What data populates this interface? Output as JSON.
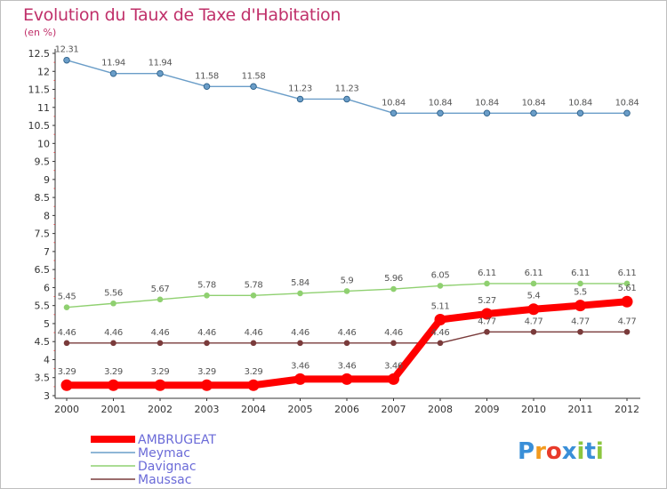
{
  "title": "Evolution du Taux de Taxe d'Habitation",
  "subtitle": "(en %)",
  "logo": "Proxiti",
  "chart_data": {
    "type": "line",
    "x": [
      "2000",
      "2001",
      "2002",
      "2003",
      "2004",
      "2005",
      "2006",
      "2007",
      "2008",
      "2009",
      "2010",
      "2011",
      "2012"
    ],
    "yticks": [
      "3",
      "3.5",
      "4",
      "4.5",
      "5",
      "5.5",
      "6",
      "6.5",
      "7",
      "7.5",
      "8",
      "8.5",
      "9",
      "9.5",
      "10",
      "10.5",
      "11",
      "11.5",
      "12",
      "12.5"
    ],
    "ylim": [
      3,
      12.5
    ],
    "grid": false,
    "legend": "bottom-left",
    "series": [
      {
        "name": "Meymac",
        "color": "#6a9dc8",
        "values": [
          12.31,
          11.94,
          11.94,
          11.58,
          11.58,
          11.23,
          11.23,
          10.84,
          10.84,
          10.84,
          10.84,
          10.84,
          10.84
        ],
        "labels": [
          "12.31",
          "11.94",
          "11.94",
          "11.58",
          "11.58",
          "11.23",
          "11.23",
          "10.84",
          "10.84",
          "10.84",
          "10.84",
          "10.84",
          "10.84"
        ]
      },
      {
        "name": "Davignac",
        "color": "#8fd070",
        "values": [
          5.45,
          5.56,
          5.67,
          5.78,
          5.78,
          5.84,
          5.9,
          5.96,
          6.05,
          6.11,
          6.11,
          6.11,
          6.11
        ],
        "labels": [
          "5.45",
          "5.56",
          "5.67",
          "5.78",
          "5.78",
          "5.84",
          "5.9",
          "5.96",
          "6.05",
          "6.11",
          "6.11",
          "6.11",
          "6.11"
        ]
      },
      {
        "name": "Maussac",
        "color": "#7a3b3b",
        "values": [
          4.46,
          4.46,
          4.46,
          4.46,
          4.46,
          4.46,
          4.46,
          4.46,
          4.46,
          4.77,
          4.77,
          4.77,
          4.77
        ],
        "labels": [
          "4.46",
          "4.46",
          "4.46",
          "4.46",
          "4.46",
          "4.46",
          "4.46",
          "4.46",
          "4.46",
          "4.77",
          "4.77",
          "4.77",
          "4.77"
        ]
      },
      {
        "name": "AMBRUGEAT",
        "color": "#ff0000",
        "values": [
          3.29,
          3.29,
          3.29,
          3.29,
          3.29,
          3.46,
          3.46,
          3.46,
          5.11,
          5.27,
          5.4,
          5.5,
          5.61
        ],
        "labels": [
          "3.29",
          "3.29",
          "3.29",
          "3.29",
          "3.29",
          "3.46",
          "3.46",
          "3.46",
          "5.11",
          "5.27",
          "5.4",
          "5.5",
          "5.61"
        ]
      }
    ],
    "legend_order": [
      "AMBRUGEAT",
      "Meymac",
      "Davignac",
      "Maussac"
    ]
  }
}
